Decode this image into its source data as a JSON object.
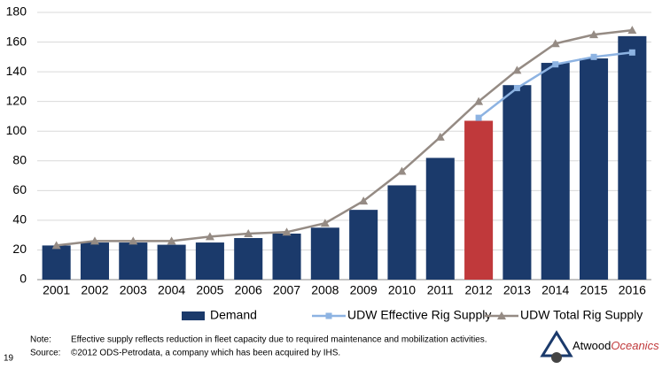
{
  "chart_data": {
    "type": "bar_line",
    "categories": [
      "2001",
      "2002",
      "2003",
      "2004",
      "2005",
      "2006",
      "2007",
      "2008",
      "2009",
      "2010",
      "2011",
      "2012",
      "2013",
      "2014",
      "2015",
      "2016"
    ],
    "series": [
      {
        "name": "Demand",
        "type": "bar",
        "color": "#1b3a6b",
        "colors": [
          "#1b3a6b",
          "#1b3a6b",
          "#1b3a6b",
          "#1b3a6b",
          "#1b3a6b",
          "#1b3a6b",
          "#1b3a6b",
          "#1b3a6b",
          "#1b3a6b",
          "#1b3a6b",
          "#1b3a6b",
          "#c0393b",
          "#1b3a6b",
          "#1b3a6b",
          "#1b3a6b",
          "#1b3a6b"
        ],
        "values": [
          23,
          25,
          25,
          23.5,
          25,
          28,
          31,
          35,
          47,
          63.5,
          82,
          107,
          131,
          146,
          149,
          164
        ]
      },
      {
        "name": "UDW Effective Rig Supply",
        "type": "line",
        "marker": "square",
        "color": "#8db3e2",
        "values": [
          null,
          null,
          null,
          null,
          null,
          null,
          null,
          null,
          null,
          null,
          null,
          109,
          129,
          145,
          150,
          153
        ]
      },
      {
        "name": "UDW Total Rig Supply",
        "type": "line",
        "marker": "triangle",
        "color": "#958b84",
        "values": [
          23,
          26,
          26,
          26,
          29,
          31,
          32,
          38,
          53,
          73,
          96,
          120,
          141,
          159,
          165,
          168
        ]
      }
    ],
    "ylim": [
      0,
      180
    ],
    "yticks": [
      0,
      20,
      40,
      60,
      80,
      100,
      120,
      140,
      160,
      180
    ],
    "grid": true,
    "legend": "bottom"
  },
  "notes": {
    "note_label": "Note:",
    "note": "Effective supply reflects reduction in fleet capacity due to required maintenance and mobilization activities.",
    "source_label": "Source:",
    "source": "©2012 ODS-Petrodata, a company which has been acquired by IHS."
  },
  "page_number": "19",
  "logo": {
    "part1": "Atwood",
    "part2": "Oceanics"
  }
}
